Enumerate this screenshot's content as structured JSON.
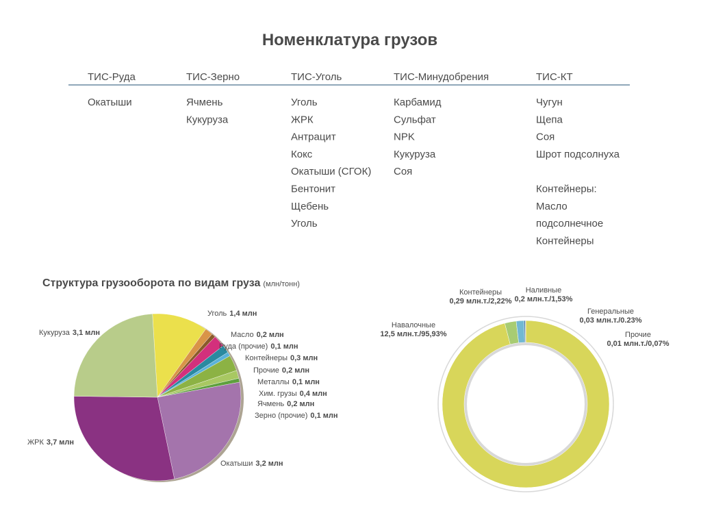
{
  "title": "Номенклатура грузов",
  "table": {
    "columns": [
      {
        "header": "ТИС-Руда",
        "groups": [
          [
            "Окатыши"
          ]
        ]
      },
      {
        "header": "ТИС-Зерно",
        "groups": [
          [
            "Ячмень",
            "Кукуруза"
          ]
        ]
      },
      {
        "header": "ТИС-Уголь",
        "groups": [
          [
            "Уголь",
            "ЖРК",
            "Антрацит",
            "Кокс",
            "Окатыши (СГОК)",
            "Бентонит",
            "Щебень",
            "Уголь"
          ]
        ]
      },
      {
        "header": "ТИС-Минудобрения",
        "groups": [
          [
            "Карбамид",
            "Сульфат",
            "NPK",
            "Кукуруза",
            "Соя"
          ]
        ]
      },
      {
        "header": "ТИС-КТ",
        "groups": [
          [
            "Чугун",
            "Щепа",
            "Соя",
            "Шрот подсолнуха"
          ],
          [
            "Контейнеры:",
            "Масло",
            "подсолнечное",
            "Контейнеры"
          ]
        ]
      }
    ]
  },
  "chart_data": [
    {
      "type": "pie",
      "title": "Структура грузооборота по видам груза",
      "subtitle": "(млн/тонн)",
      "categories": [
        "Уголь",
        "Масло",
        "Руда (прочие)",
        "Контейнеры",
        "Прочие",
        "Металлы",
        "Хим. грузы",
        "Ячмень",
        "Зерно (прочие)",
        "Окатыши",
        "ЖРК",
        "Кукуруза"
      ],
      "values": [
        1.4,
        0.2,
        0.1,
        0.3,
        0.2,
        0.1,
        0.4,
        0.2,
        0.1,
        3.2,
        3.7,
        3.1
      ],
      "value_labels": [
        "1,4 млн",
        "0,2 млн",
        "0,1 млн",
        "0,3 млн",
        "0,2 млн",
        "0,1 млн",
        "0,4 млн",
        "0,2 млн",
        "0,1 млн",
        "3,2 млн",
        "3,7 млн",
        "3,1 млн"
      ],
      "colors": [
        "#ebe04c",
        "#d99448",
        "#8a5a2a",
        "#d3307c",
        "#2a8aa0",
        "#5ab2da",
        "#8cb244",
        "#a8c862",
        "#5ea03e",
        "#a474ac",
        "#8a3282",
        "#b8cc8a"
      ]
    },
    {
      "type": "donut",
      "categories": [
        "Навалочные",
        "Контейнеры",
        "Наливные",
        "Генеральные",
        "Прочие"
      ],
      "values": [
        95.93,
        2.22,
        1.53,
        0.23,
        0.07
      ],
      "value_labels": [
        "12,5 млн.т./95,93%",
        "0,29 млн.т./2,22%",
        "0,2 млн.т./1,53%",
        "0,03 млн.т./0.23%",
        "0,01 млн.т./0,07%"
      ],
      "colors": [
        "#d8d65a",
        "#a8cc72",
        "#72b8d2",
        "#3a6a9a",
        "#8a8a8a"
      ]
    }
  ]
}
